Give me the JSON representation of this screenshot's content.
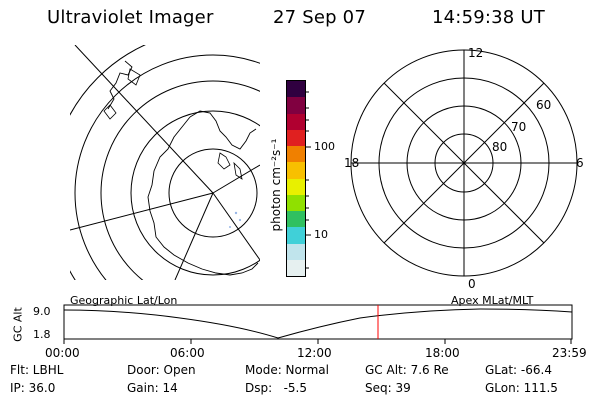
{
  "header": {
    "instrument": "Ultraviolet Imager",
    "date": "27 Sep 07",
    "time": "14:59:38 UT"
  },
  "colorbar": {
    "unit_label": "photon cm⁻²s⁻¹",
    "ticks": [
      "100",
      "10"
    ],
    "colors": [
      "#e6f0f0",
      "#c0e4ec",
      "#40d0d8",
      "#30c060",
      "#90e000",
      "#e8f000",
      "#f8c000",
      "#f08000",
      "#e02020",
      "#b00030",
      "#800040",
      "#300040"
    ]
  },
  "polar_plot": {
    "labels": {
      "top": "12",
      "right": "6",
      "left": "18",
      "bottom": "0",
      "r80": "80",
      "r70": "70",
      "r60": "60"
    }
  },
  "timeline": {
    "y_axis_label": "GC Alt",
    "y_tick_top": "9.0",
    "y_tick_bottom": "1.8",
    "left_caption": "Geographic Lat/Lon",
    "right_caption": "Apex MLat/MLT",
    "x_ticks": [
      "00:00",
      "06:00",
      "12:00",
      "18:00",
      "23:59"
    ]
  },
  "info": {
    "flt": "Flt: LBHL",
    "ip": "IP: 36.0",
    "door": "Door: Open",
    "gain": "Gain: 14",
    "mode": "Mode: Normal",
    "dsp": "Dsp:   -5.5",
    "gcalt": "GC Alt: 7.6 Re",
    "seq": "Seq: 39",
    "glat": "GLat: -66.4",
    "glon": "GLon: 111.5"
  },
  "colors": {
    "line": "#000000",
    "marker": "#ff0000",
    "antarctica_dots": "#9ab8e8"
  }
}
